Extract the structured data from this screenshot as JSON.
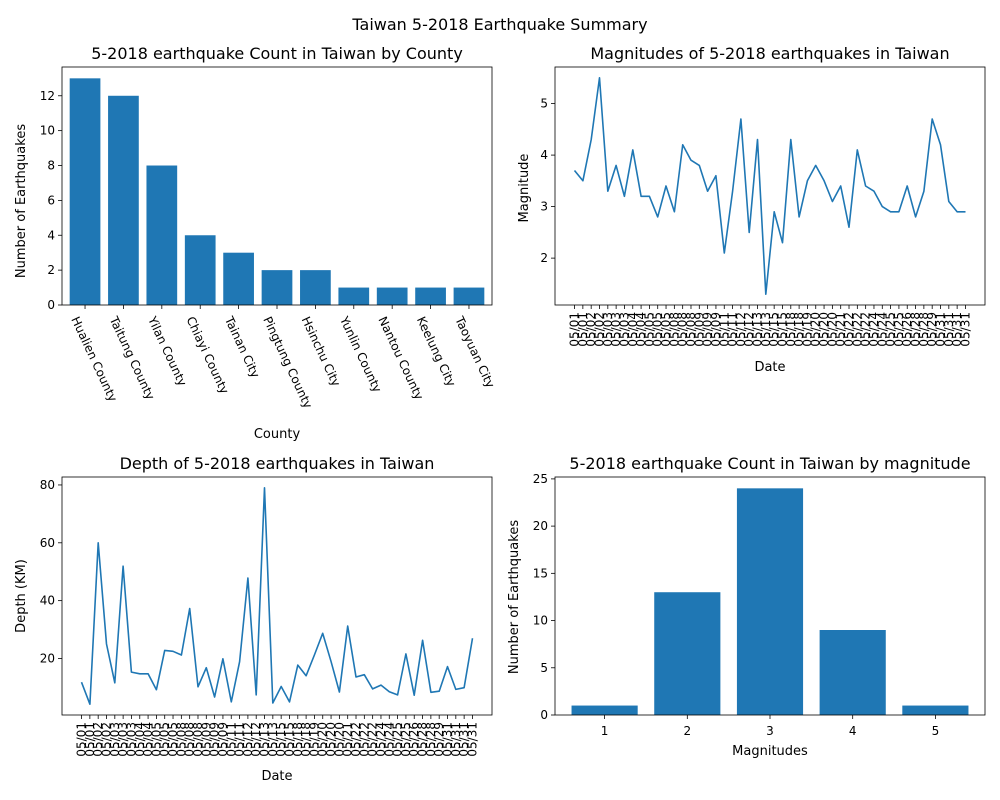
{
  "figure": {
    "title": "Taiwan 5-2018 Earthquake Summary"
  },
  "colors": {
    "bar": "#1f77b4",
    "line": "#1f77b4",
    "axis": "#000000"
  },
  "chart_data": [
    {
      "id": "county",
      "type": "bar",
      "title": "5-2018 earthquake Count in Taiwan by County",
      "xlabel": "County",
      "ylabel": "Number of Earthquakes",
      "categories": [
        "Hualien County",
        "Taitung County",
        "Yilan County",
        "Chiayi County",
        "Tainan City",
        "Pingtung County",
        "Hsinchu City",
        "Yunlin County",
        "Nantou County",
        "Keelung City",
        "Taoyuan City"
      ],
      "values": [
        13,
        12,
        8,
        4,
        3,
        2,
        2,
        1,
        1,
        1,
        1
      ],
      "ylim": [
        0,
        13.65
      ],
      "yticks": [
        0,
        2,
        4,
        6,
        8,
        10,
        12
      ],
      "grid": false
    },
    {
      "id": "magnitude",
      "type": "line",
      "title": "Magnitudes of 5-2018 earthquakes in Taiwan",
      "xlabel": "Date",
      "ylabel": "Magnitude",
      "x": [
        "05/01",
        "05/01",
        "05/02",
        "05/02",
        "05/03",
        "05/03",
        "05/03",
        "05/04",
        "05/04",
        "05/05",
        "05/05",
        "05/05",
        "05/08",
        "05/08",
        "05/08",
        "05/09",
        "05/09",
        "05/09",
        "05/11",
        "05/11",
        "05/12",
        "05/12",
        "05/13",
        "05/13",
        "05/15",
        "05/15",
        "05/18",
        "05/18",
        "05/19",
        "05/20",
        "05/20",
        "05/20",
        "05/21",
        "05/22",
        "05/22",
        "05/22",
        "05/24",
        "05/24",
        "05/25",
        "05/25",
        "05/26",
        "05/28",
        "05/28",
        "05/29",
        "05/31",
        "05/31",
        "05/31",
        "05/31"
      ],
      "values": [
        3.7,
        3.5,
        4.3,
        5.5,
        3.3,
        3.8,
        3.2,
        4.1,
        3.2,
        3.2,
        2.8,
        3.4,
        2.9,
        4.2,
        3.9,
        3.8,
        3.3,
        3.6,
        2.1,
        3.3,
        4.7,
        2.5,
        4.3,
        1.3,
        2.9,
        2.3,
        4.3,
        2.8,
        3.5,
        3.8,
        3.5,
        3.1,
        3.4,
        2.6,
        4.1,
        3.4,
        3.3,
        3.0,
        2.9,
        2.9,
        3.4,
        2.8,
        3.3,
        4.7,
        4.2,
        3.1,
        2.9,
        2.9
      ],
      "ylim": [
        1.09,
        5.71
      ],
      "yticks": [
        2,
        3,
        4,
        5
      ],
      "grid": false
    },
    {
      "id": "depth",
      "type": "line",
      "title": "Depth of 5-2018 earthquakes in Taiwan",
      "xlabel": "Date",
      "ylabel": "Depth (KM)",
      "x": [
        "05/01",
        "05/01",
        "05/02",
        "05/02",
        "05/03",
        "05/03",
        "05/03",
        "05/04",
        "05/04",
        "05/05",
        "05/05",
        "05/05",
        "05/08",
        "05/08",
        "05/08",
        "05/09",
        "05/09",
        "05/09",
        "05/11",
        "05/11",
        "05/12",
        "05/12",
        "05/13",
        "05/13",
        "05/15",
        "05/15",
        "05/18",
        "05/18",
        "05/19",
        "05/20",
        "05/20",
        "05/20",
        "05/21",
        "05/22",
        "05/22",
        "05/22",
        "05/24",
        "05/24",
        "05/25",
        "05/25",
        "05/26",
        "05/28",
        "05/28",
        "05/29",
        "05/31",
        "05/31",
        "05/31",
        "05/31"
      ],
      "values": [
        11.8,
        4.2,
        60.0,
        25.0,
        11.6,
        51.9,
        15.3,
        14.7,
        14.7,
        9.2,
        22.8,
        22.5,
        21.2,
        37.3,
        10.2,
        16.8,
        6.7,
        19.9,
        5.0,
        18.9,
        47.8,
        7.4,
        79.0,
        4.6,
        10.3,
        5.0,
        17.7,
        14.0,
        21.2,
        28.7,
        18.9,
        8.4,
        31.2,
        13.6,
        14.4,
        9.5,
        10.8,
        8.5,
        7.4,
        21.6,
        7.3,
        26.3,
        8.3,
        8.7,
        17.2,
        9.3,
        9.9,
        27.0
      ],
      "ylim": [
        0.46,
        82.75
      ],
      "yticks": [
        20,
        40,
        60,
        80
      ],
      "grid": false
    },
    {
      "id": "mag_count",
      "type": "bar",
      "title": "5-2018 earthquake Count in Taiwan by magnitude",
      "xlabel": "Magnitudes",
      "ylabel": "Number of Earthquakes",
      "categories": [
        "1",
        "2",
        "3",
        "4",
        "5"
      ],
      "values": [
        1,
        13,
        24,
        9,
        1
      ],
      "ylim": [
        0,
        25.2
      ],
      "yticks": [
        0,
        5,
        10,
        15,
        20,
        25
      ],
      "grid": false
    }
  ]
}
